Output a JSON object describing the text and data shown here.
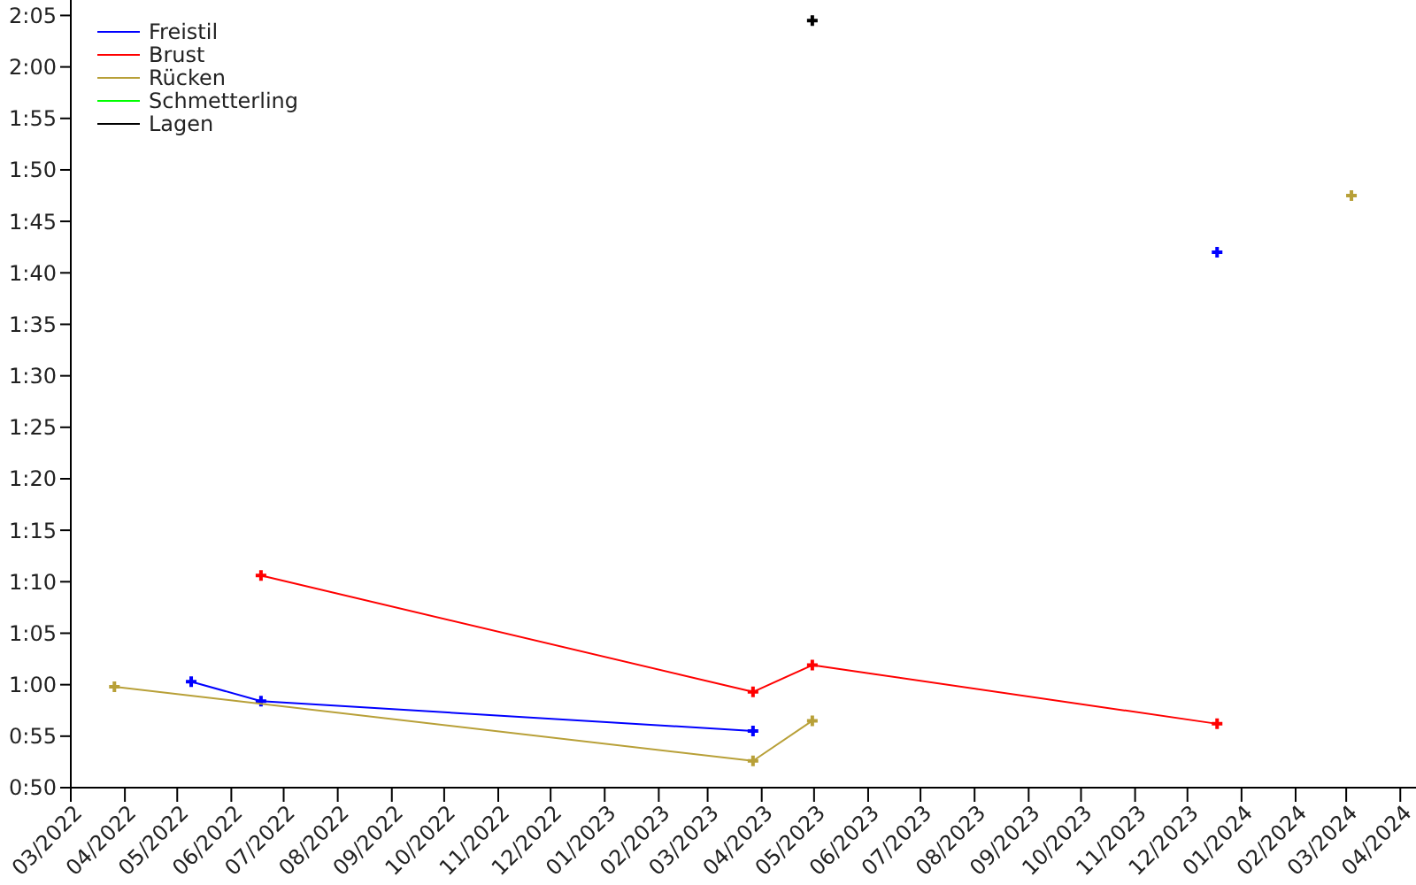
{
  "chart_data": {
    "type": "line",
    "legend": "top left",
    "marker": "cross",
    "line_style": "solid",
    "grid": false,
    "xlim": [
      "2022-03-01",
      "2024-04-10"
    ],
    "xticks": [
      {
        "value": "2022-03-01",
        "label": "03/2022"
      },
      {
        "value": "2022-04-01",
        "label": "04/2022"
      },
      {
        "value": "2022-05-01",
        "label": "05/2022"
      },
      {
        "value": "2022-06-01",
        "label": "06/2022"
      },
      {
        "value": "2022-07-01",
        "label": "07/2022"
      },
      {
        "value": "2022-08-01",
        "label": "08/2022"
      },
      {
        "value": "2022-09-01",
        "label": "09/2022"
      },
      {
        "value": "2022-10-01",
        "label": "10/2022"
      },
      {
        "value": "2022-11-01",
        "label": "11/2022"
      },
      {
        "value": "2022-12-01",
        "label": "12/2022"
      },
      {
        "value": "2023-01-01",
        "label": "01/2023"
      },
      {
        "value": "2023-02-01",
        "label": "02/2023"
      },
      {
        "value": "2023-03-01",
        "label": "03/2023"
      },
      {
        "value": "2023-04-01",
        "label": "04/2023"
      },
      {
        "value": "2023-05-01",
        "label": "05/2023"
      },
      {
        "value": "2023-06-01",
        "label": "06/2023"
      },
      {
        "value": "2023-07-01",
        "label": "07/2023"
      },
      {
        "value": "2023-08-01",
        "label": "08/2023"
      },
      {
        "value": "2023-09-01",
        "label": "09/2023"
      },
      {
        "value": "2023-10-01",
        "label": "10/2023"
      },
      {
        "value": "2023-11-01",
        "label": "11/2023"
      },
      {
        "value": "2023-12-01",
        "label": "12/2023"
      },
      {
        "value": "2024-01-01",
        "label": "01/2024"
      },
      {
        "value": "2024-02-01",
        "label": "02/2024"
      },
      {
        "value": "2024-03-01",
        "label": "03/2024"
      },
      {
        "value": "2024-04-01",
        "label": "04/2024"
      }
    ],
    "ylim": [
      50,
      126.5
    ],
    "yticks": [
      {
        "value": 50,
        "label": "0:50"
      },
      {
        "value": 55,
        "label": "0:55"
      },
      {
        "value": 60,
        "label": "1:00"
      },
      {
        "value": 65,
        "label": "1:05"
      },
      {
        "value": 70,
        "label": "1:10"
      },
      {
        "value": 75,
        "label": "1:15"
      },
      {
        "value": 80,
        "label": "1:20"
      },
      {
        "value": 85,
        "label": "1:25"
      },
      {
        "value": 90,
        "label": "1:30"
      },
      {
        "value": 95,
        "label": "1:35"
      },
      {
        "value": 100,
        "label": "1:40"
      },
      {
        "value": 105,
        "label": "1:45"
      },
      {
        "value": 110,
        "label": "1:50"
      },
      {
        "value": 115,
        "label": "1:55"
      },
      {
        "value": 120,
        "label": "2:00"
      },
      {
        "value": 125,
        "label": "2:05"
      }
    ],
    "series": [
      {
        "name": "Freistil",
        "color": "#0000ff",
        "x": [
          "2022-05-09",
          "2022-06-18",
          "2023-03-27"
        ],
        "values": [
          60.3,
          58.4,
          55.5
        ]
      },
      {
        "color": "#0000ff",
        "x": [
          "2023-12-18"
        ],
        "values": [
          102.0
        ]
      },
      {
        "name": "Brust",
        "color": "#ff0000",
        "x": [
          "2022-06-18",
          "2023-03-27",
          "2023-04-30",
          "2023-12-18"
        ],
        "values": [
          70.6,
          59.3,
          61.9,
          56.2
        ]
      },
      {
        "name": "Rücken",
        "color": "#b8a038",
        "x": [
          "2022-03-26",
          "2023-03-27",
          "2023-04-30"
        ],
        "values": [
          59.8,
          52.6,
          56.5
        ]
      },
      {
        "color": "#b8a038",
        "x": [
          "2024-03-04"
        ],
        "values": [
          107.5
        ]
      },
      {
        "name": "Schmetterling",
        "color": "#00ff00"
      },
      {
        "name": "Lagen",
        "color": "#000000",
        "x": [
          "2023-04-30"
        ],
        "values": [
          124.5
        ]
      }
    ]
  }
}
